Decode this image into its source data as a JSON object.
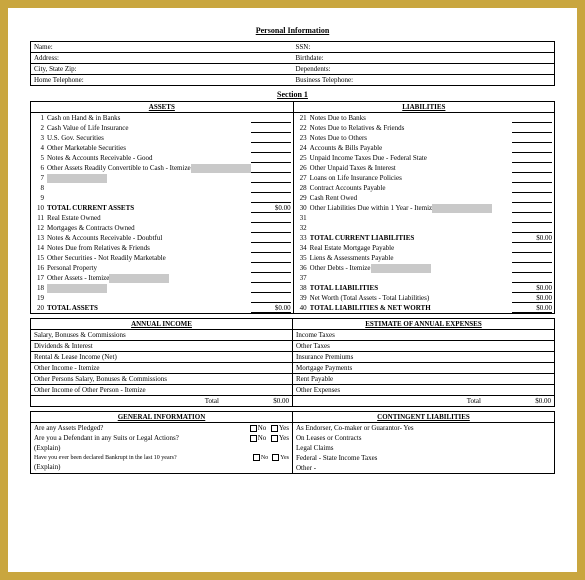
{
  "title": "Personal Information",
  "personal": {
    "left": [
      "Name:",
      "Address:",
      "City, State Zip:",
      "Home Telephone:"
    ],
    "right": [
      "SSN:",
      "Birthdate:",
      "Dependents:",
      "Business Telephone:"
    ]
  },
  "section1": "Section 1",
  "assets": {
    "header": "ASSETS",
    "rows": [
      {
        "n": "1",
        "d": "Cash on Hand & in Banks",
        "a": ""
      },
      {
        "n": "2",
        "d": "Cash Value of Life Insurance",
        "a": ""
      },
      {
        "n": "3",
        "d": "U.S. Gov. Securities",
        "a": ""
      },
      {
        "n": "4",
        "d": "Other Marketable Securities",
        "a": ""
      },
      {
        "n": "5",
        "d": "Notes & Accounts Receivable - Good",
        "a": ""
      },
      {
        "n": "6",
        "d": "Other Assets Readily Convertible to Cash - Itemize",
        "a": "",
        "shade": true
      },
      {
        "n": "7",
        "d": "",
        "a": "",
        "shade": true
      },
      {
        "n": "8",
        "d": "",
        "a": ""
      },
      {
        "n": "9",
        "d": "",
        "a": ""
      },
      {
        "n": "10",
        "d": "TOTAL CURRENT ASSETS",
        "a": "$0.00",
        "bold": true
      },
      {
        "n": "11",
        "d": "Real Estate Owned",
        "a": ""
      },
      {
        "n": "12",
        "d": "Mortgages & Contracts Owned",
        "a": ""
      },
      {
        "n": "13",
        "d": "Notes & Accounts Receivable - Doubtful",
        "a": ""
      },
      {
        "n": "14",
        "d": "Notes Due from Relatives & Friends",
        "a": ""
      },
      {
        "n": "15",
        "d": "Other Securities - Not Readily Marketable",
        "a": ""
      },
      {
        "n": "16",
        "d": "Personal Property",
        "a": ""
      },
      {
        "n": "17",
        "d": "Other Assets - Itemize",
        "a": "",
        "shade": true
      },
      {
        "n": "18",
        "d": "",
        "a": "",
        "shade": true
      },
      {
        "n": "19",
        "d": "",
        "a": ""
      },
      {
        "n": "20",
        "d": "TOTAL ASSETS",
        "a": "$0.00",
        "bold": true
      }
    ]
  },
  "liabilities": {
    "header": "LIABILITIES",
    "rows": [
      {
        "n": "21",
        "d": "Notes Due to Banks",
        "a": ""
      },
      {
        "n": "22",
        "d": "Notes Due to Relatives & Friends",
        "a": ""
      },
      {
        "n": "23",
        "d": "Notes Due to Others",
        "a": ""
      },
      {
        "n": "24",
        "d": "Accounts & Bills Payable",
        "a": ""
      },
      {
        "n": "25",
        "d": "Unpaid Income Taxes Due - Federal  State",
        "a": ""
      },
      {
        "n": "26",
        "d": "Other Unpaid Taxes & Interest",
        "a": ""
      },
      {
        "n": "27",
        "d": "Loans on Life Insurance Policies",
        "a": ""
      },
      {
        "n": "28",
        "d": "Contract Accounts Payable",
        "a": ""
      },
      {
        "n": "29",
        "d": "Cash Rent Owed",
        "a": ""
      },
      {
        "n": "30",
        "d": "Other Liabilities Due within 1 Year - Itemiz",
        "a": "",
        "shade": true
      },
      {
        "n": "31",
        "d": "",
        "a": ""
      },
      {
        "n": "32",
        "d": "",
        "a": ""
      },
      {
        "n": "33",
        "d": "TOTAL CURRENT LIABILITIES",
        "a": "$0.00",
        "bold": true
      },
      {
        "n": "34",
        "d": "Real Estate Mortgage Payable",
        "a": ""
      },
      {
        "n": "35",
        "d": "Liens & Assessments Payable",
        "a": ""
      },
      {
        "n": "36",
        "d": "Other Debts - Itemize",
        "a": "",
        "shade": true
      },
      {
        "n": "37",
        "d": "",
        "a": ""
      },
      {
        "n": "38",
        "d": "TOTAL LIABILITIES",
        "a": "$0.00",
        "bold": true
      },
      {
        "n": "39",
        "d": "Net Worth (Total Assets - Total Liabilities)",
        "a": "$0.00"
      },
      {
        "n": "40",
        "d": "TOTAL LIABILITIES & NET WORTH",
        "a": "$0.00",
        "bold": true
      }
    ]
  },
  "income": {
    "header": "ANNUAL INCOME",
    "rows": [
      "Salary, Bonuses & Commissions",
      "Dividends & Interest",
      "Rental & Lease Income (Net)",
      "Other Income - Itemize",
      "Other Persons Salary, Bonuses & Commissions",
      "Other Income of Other Person - Itemize"
    ],
    "total": "Total",
    "totalAmt": "$0.00"
  },
  "expenses": {
    "header": "ESTIMATE OF ANNUAL EXPENSES",
    "rows": [
      "Income Taxes",
      "Other Taxes",
      "Insurance Premiums",
      "Mortgage Payments",
      "Rent Payable",
      "Other Expenses"
    ],
    "total": "Total",
    "totalAmt": "$0.00"
  },
  "general": {
    "header": "GENERAL INFORMATION",
    "q1": "Are any Assets Pledged?",
    "q2": "Are you a Defendant in any Suits or Legal Actions?",
    "q3": "(Explain)",
    "q4": "Have you ever been declared Bankrupt in the last 10 years?",
    "q5": "(Explain)",
    "no": "No",
    "yes": "Yes"
  },
  "contingent": {
    "header": "CONTINGENT LIABILITIES",
    "rows": [
      "As Endorser, Co-maker or Guarantor- Yes",
      "On Leases or Contracts",
      "Legal Claims",
      "Federal - State Income Taxes",
      "Other -"
    ]
  }
}
